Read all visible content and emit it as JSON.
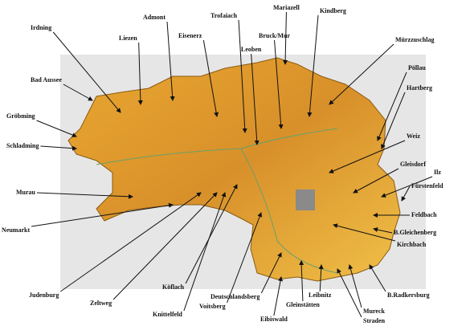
{
  "labels": [
    "Irdning",
    "Liezen",
    "Admont",
    "Eisenerz",
    "Trofaiach",
    "Mariazell",
    "Kindberg",
    "Bruck/Mur",
    "Leoben",
    "Mürzzuschlag",
    "Pöllau",
    "Hartberg",
    "Bad Aussee",
    "Gröbming",
    "Schladming",
    "Weiz",
    "Gleisdorf",
    "Ilz",
    "Fürstenfeld",
    "Murau",
    "Feldbach",
    "Neumarkt",
    "B.Gleichenberg",
    "Kirchbach",
    "Judenburg",
    "Zeltweg",
    "Köflach",
    "Knittelfeld",
    "Voitsberg",
    "Deutschlandsberg",
    "Eibiswald",
    "Gleinstätten",
    "Leibnitz",
    "Mureck",
    "Straden",
    "B.Radkersburg"
  ]
}
